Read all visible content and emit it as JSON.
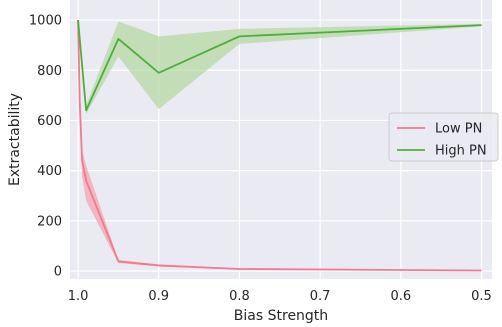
{
  "chart_data": {
    "type": "line",
    "title": "",
    "xlabel": "Bias Strength",
    "ylabel": "Extractability",
    "x_axis_inverted": true,
    "xlim": [
      1.0,
      0.5
    ],
    "ylim": [
      0,
      1000
    ],
    "xticks": [
      1.0,
      0.9,
      0.8,
      0.7,
      0.6,
      0.5
    ],
    "xtick_labels": [
      "1.0",
      "0.9",
      "0.8",
      "0.7",
      "0.6",
      "0.5"
    ],
    "yticks": [
      0,
      200,
      400,
      600,
      800,
      1000
    ],
    "ytick_labels": [
      "0",
      "200",
      "400",
      "600",
      "800",
      "1000"
    ],
    "grid": true,
    "legend_position": "center-right",
    "series": [
      {
        "name": "Low PN",
        "color": "#f27a8a",
        "band_color": "#f4a3b0",
        "x": [
          1.0,
          0.998,
          0.995,
          0.99,
          0.95,
          0.9,
          0.8,
          0.5
        ],
        "y": [
          1000,
          680,
          440,
          360,
          38,
          22,
          8,
          2
        ],
        "lower": [
          1000,
          640,
          380,
          280,
          32,
          18,
          6,
          1
        ],
        "upper": [
          1000,
          720,
          480,
          420,
          44,
          26,
          10,
          3
        ]
      },
      {
        "name": "High PN",
        "color": "#4daf3a",
        "band_color": "#b5d9a3",
        "x": [
          1.0,
          0.99,
          0.95,
          0.9,
          0.8,
          0.5
        ],
        "y": [
          1000,
          640,
          925,
          790,
          935,
          980
        ],
        "lower": [
          1000,
          625,
          855,
          645,
          905,
          975
        ],
        "upper": [
          1000,
          660,
          995,
          935,
          965,
          985
        ]
      }
    ]
  }
}
